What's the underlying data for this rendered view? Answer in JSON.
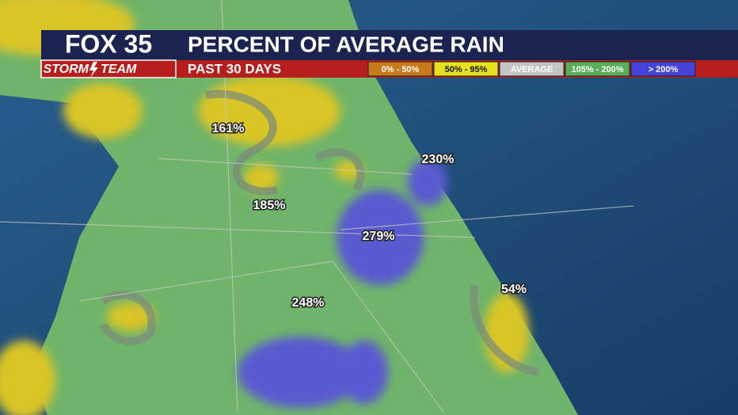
{
  "header": {
    "logo_top": "FOX 35",
    "logo_storm": "STORM",
    "logo_team": "TEAM",
    "title": "PERCENT OF AVERAGE RAIN",
    "subtitle": "PAST 30 DAYS"
  },
  "legend": {
    "items": [
      {
        "label": "0% - 50%",
        "color": "#c67a1c",
        "text_color": "#ffffff"
      },
      {
        "label": "50% - 95%",
        "color": "#e6e21e",
        "text_color": "#111111"
      },
      {
        "label": "AVERAGE",
        "color": "#c4c4c4",
        "text_color": "#ffffff"
      },
      {
        "label": "105% - 200%",
        "color": "#5aae5a",
        "text_color": "#ffffff"
      },
      {
        "label": "> 200%",
        "color": "#4444d8",
        "text_color": "#ffffff"
      }
    ]
  },
  "map_labels": [
    "161%",
    "185%",
    "230%",
    "279%",
    "248%",
    "54%"
  ]
}
